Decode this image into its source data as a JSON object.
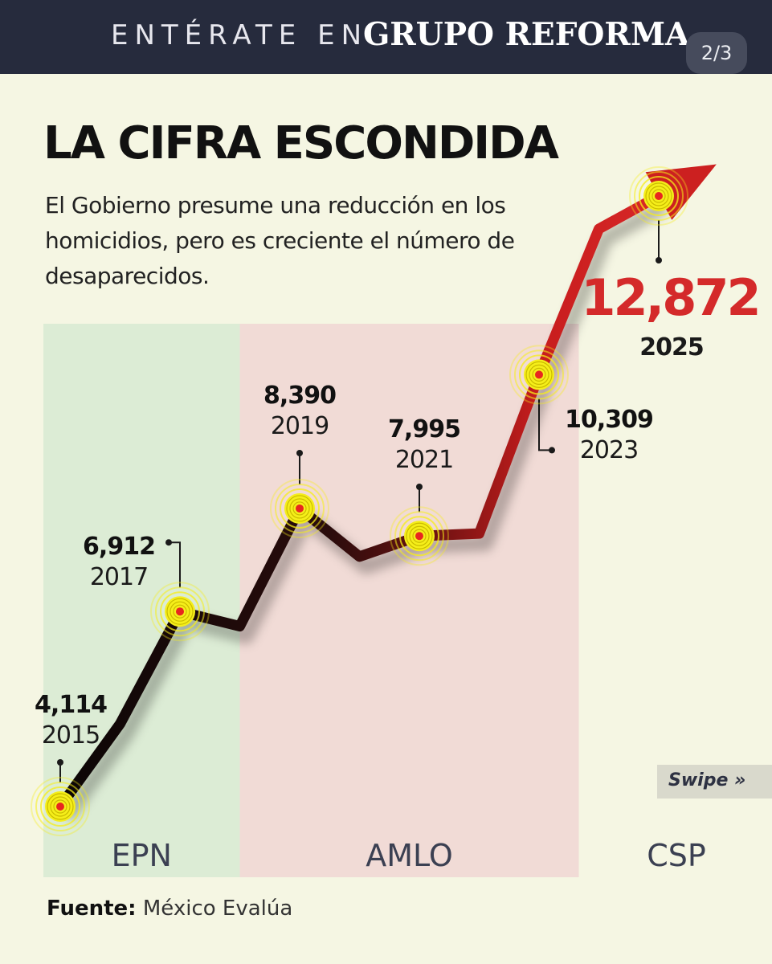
{
  "header": {
    "prefix": "ENTÉRATE EN",
    "brand": "GRUPO REFORMA",
    "page_counter": "2/3"
  },
  "headline": "LA CIFRA ESCONDIDA",
  "subtitle": "El Gobierno presume una reducción en los homicidios, pero es creciente el número de desaparecidos.",
  "swipe": "Swipe »",
  "source": {
    "label": "Fuente:",
    "text": "México Evalúa"
  },
  "colors": {
    "epn_band": "#dcecd5",
    "amlo_band": "#f1dbd6",
    "line_dark": "#1a0c0c",
    "line_red": "#cc2020",
    "highlight": "#d42a2a",
    "marker_glow": "#f5ee1a",
    "marker_core": "#e8271f"
  },
  "chart_data": {
    "type": "line",
    "x": [
      2015,
      2016,
      2017,
      2018,
      2019,
      2020,
      2021,
      2022,
      2023,
      2024,
      2025
    ],
    "values": [
      4114,
      5300,
      6912,
      6700,
      8390,
      7700,
      7995,
      8030,
      10309,
      12400,
      12872
    ],
    "labeled_points": [
      {
        "year": "2015",
        "value": "4,114"
      },
      {
        "year": "2017",
        "value": "6,912"
      },
      {
        "year": "2019",
        "value": "8,390"
      },
      {
        "year": "2021",
        "value": "7,995"
      },
      {
        "year": "2023",
        "value": "10,309"
      },
      {
        "year": "2025",
        "value": "12,872"
      }
    ],
    "periods": [
      {
        "name": "EPN",
        "from": 2013,
        "to": 2018
      },
      {
        "name": "AMLO",
        "from": 2018,
        "to": 2024
      },
      {
        "name": "CSP",
        "from": 2024,
        "to": 2026
      }
    ],
    "grid": false,
    "legend": "none"
  }
}
